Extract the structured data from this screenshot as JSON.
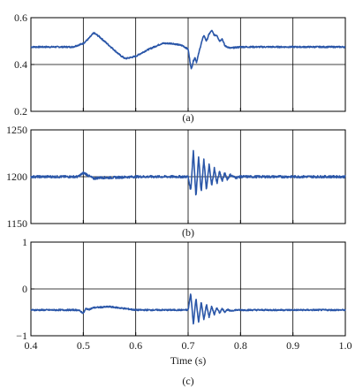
{
  "colors": {
    "trace": "#2a56a8",
    "axis": "#000000",
    "grid": "#000000"
  },
  "chart_data": [
    {
      "type": "line",
      "caption": "(a)",
      "xlim": [
        0.4,
        1.0
      ],
      "ylim": [
        0.2,
        0.6
      ],
      "x_ticks": [
        0.4,
        0.5,
        0.6,
        0.7,
        0.8,
        0.9,
        1.0
      ],
      "y_ticks": [
        "0.2",
        "0.4",
        "0.6"
      ],
      "y_tick_values": [
        0.2,
        0.4,
        0.6
      ],
      "grid": true,
      "noise": 0.003,
      "series": [
        {
          "x": [
            0.4,
            0.48,
            0.5,
            0.51,
            0.52,
            0.53,
            0.55,
            0.57,
            0.58,
            0.6,
            0.62,
            0.65,
            0.67,
            0.69,
            0.7,
            0.703,
            0.706,
            0.71,
            0.713,
            0.716,
            0.72,
            0.725,
            0.73,
            0.735,
            0.74,
            0.745,
            0.75,
            0.755,
            0.76,
            0.765,
            0.77,
            0.78,
            0.8,
            0.85,
            0.9,
            1.0
          ],
          "y": [
            0.475,
            0.475,
            0.49,
            0.51,
            0.535,
            0.52,
            0.48,
            0.44,
            0.425,
            0.435,
            0.46,
            0.49,
            0.49,
            0.48,
            0.465,
            0.42,
            0.38,
            0.415,
            0.43,
            0.41,
            0.445,
            0.49,
            0.525,
            0.5,
            0.53,
            0.545,
            0.525,
            0.525,
            0.5,
            0.51,
            0.48,
            0.47,
            0.475,
            0.475,
            0.475,
            0.475
          ]
        }
      ]
    },
    {
      "type": "line",
      "caption": "(b)",
      "xlim": [
        0.4,
        1.0
      ],
      "ylim": [
        1150,
        1250
      ],
      "x_ticks": [
        0.4,
        0.5,
        0.6,
        0.7,
        0.8,
        0.9,
        1.0
      ],
      "y_ticks": [
        "1150",
        "1200",
        "1250"
      ],
      "y_tick_values": [
        1150,
        1200,
        1250
      ],
      "grid": true,
      "noise": 1.2,
      "series": [
        {
          "x": [
            0.4,
            0.49,
            0.495,
            0.5,
            0.505,
            0.51,
            0.52,
            0.53,
            0.55,
            0.6,
            0.65,
            0.7,
            0.705,
            0.71,
            0.715,
            0.72,
            0.725,
            0.73,
            0.735,
            0.74,
            0.745,
            0.75,
            0.755,
            0.76,
            0.765,
            0.77,
            0.775,
            0.78,
            0.79,
            0.8,
            1.0
          ],
          "y": [
            1200,
            1200,
            1202,
            1204,
            1203,
            1201,
            1198,
            1199,
            1199,
            1200,
            1200,
            1200,
            1185,
            1228,
            1178,
            1222,
            1183,
            1218,
            1186,
            1213,
            1190,
            1209,
            1193,
            1206,
            1195,
            1204,
            1197,
            1202,
            1199,
            1200,
            1200
          ]
        }
      ]
    },
    {
      "type": "line",
      "caption": "(c)",
      "xlim": [
        0.4,
        1.0
      ],
      "ylim": [
        -1,
        1
      ],
      "x_ticks": [
        0.4,
        0.5,
        0.6,
        0.7,
        0.8,
        0.9,
        1.0
      ],
      "x_tick_labels": [
        "0.4",
        "0.5",
        "0.6",
        "0.7",
        "0.8",
        "0.9",
        "1.0"
      ],
      "y_ticks": [
        "−1",
        "0",
        "1"
      ],
      "y_tick_values": [
        -1,
        0,
        1
      ],
      "xlabel": "Time (s)",
      "grid": true,
      "noise": 0.015,
      "series": [
        {
          "x": [
            0.4,
            0.49,
            0.495,
            0.5,
            0.505,
            0.51,
            0.52,
            0.55,
            0.58,
            0.6,
            0.65,
            0.7,
            0.705,
            0.71,
            0.715,
            0.72,
            0.725,
            0.73,
            0.735,
            0.74,
            0.745,
            0.75,
            0.755,
            0.76,
            0.765,
            0.77,
            0.775,
            0.78,
            0.79,
            0.8,
            1.0
          ],
          "y": [
            -0.45,
            -0.45,
            -0.48,
            -0.52,
            -0.42,
            -0.44,
            -0.4,
            -0.38,
            -0.42,
            -0.45,
            -0.45,
            -0.45,
            -0.1,
            -0.75,
            -0.2,
            -0.72,
            -0.28,
            -0.66,
            -0.33,
            -0.6,
            -0.37,
            -0.55,
            -0.4,
            -0.51,
            -0.42,
            -0.49,
            -0.44,
            -0.47,
            -0.45,
            -0.45,
            -0.45
          ]
        }
      ]
    }
  ]
}
